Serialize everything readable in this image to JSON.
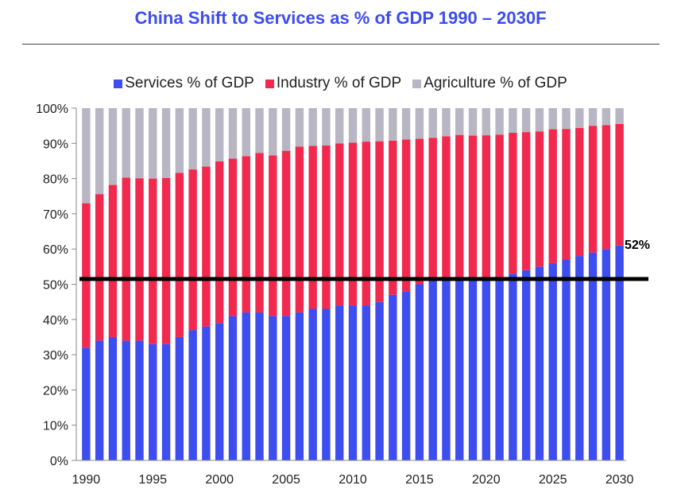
{
  "chart_data": {
    "type": "bar",
    "stacked": true,
    "title": "China Shift to Services as % of GDP 1990 – 2030F",
    "xlabel": "",
    "ylabel": "",
    "ylim": [
      0,
      100
    ],
    "yticks": [
      "0%",
      "10%",
      "20%",
      "30%",
      "40%",
      "50%",
      "60%",
      "70%",
      "80%",
      "90%",
      "100%"
    ],
    "xticks": [
      "1990",
      "1995",
      "2000",
      "2005",
      "2010",
      "2015",
      "2020",
      "2025",
      "2030"
    ],
    "legend_position": "top",
    "grid": false,
    "x": [
      1990,
      1991,
      1992,
      1993,
      1994,
      1995,
      1996,
      1997,
      1998,
      1999,
      2000,
      2001,
      2002,
      2003,
      2004,
      2005,
      2006,
      2007,
      2008,
      2009,
      2010,
      2011,
      2012,
      2013,
      2014,
      2015,
      2016,
      2017,
      2018,
      2019,
      2020,
      2021,
      2022,
      2023,
      2024,
      2025,
      2026,
      2027,
      2028,
      2029,
      2030
    ],
    "series": [
      {
        "name": "Services % of GDP",
        "color": "#3d4df0",
        "values": [
          32,
          34,
          35,
          34,
          34,
          33,
          33,
          35,
          37,
          38,
          39,
          41,
          42,
          42,
          41,
          41,
          42,
          43,
          43,
          44,
          44,
          44,
          45,
          47,
          48,
          50,
          52,
          52,
          52,
          52,
          52,
          52,
          53,
          54,
          55,
          56,
          57,
          58,
          59,
          60,
          61
        ]
      },
      {
        "name": "Industry % of GDP",
        "color": "#f2294e",
        "values": [
          41,
          41.6,
          43.2,
          46.3,
          46.1,
          47,
          47.2,
          46.6,
          45.6,
          45.4,
          45.9,
          44.7,
          44.4,
          45.3,
          45.6,
          46.9,
          47.1,
          46.3,
          46.4,
          46,
          46.2,
          46.5,
          45.6,
          43.8,
          43.1,
          41.3,
          39.6,
          40,
          40.4,
          40.2,
          40.3,
          40.5,
          40,
          39.2,
          38.4,
          38,
          37.1,
          36.4,
          36,
          35.2,
          34.5
        ]
      },
      {
        "name": "Agriculture % of GDP",
        "color": "#b7b6c2",
        "values": [
          27,
          24.4,
          21.8,
          19.7,
          19.9,
          20,
          19.8,
          18.4,
          17.4,
          16.6,
          15.1,
          14.3,
          13.6,
          12.7,
          13.4,
          12.1,
          10.9,
          10.7,
          10.6,
          10,
          9.8,
          9.5,
          9.4,
          9.2,
          8.9,
          8.7,
          8.4,
          8,
          7.6,
          7.8,
          7.7,
          7.5,
          7,
          6.8,
          6.6,
          6,
          5.9,
          5.6,
          5,
          4.8,
          4.5
        ]
      }
    ],
    "reference_line": {
      "value": 51.5,
      "label": "52%",
      "color": "#000000"
    }
  }
}
